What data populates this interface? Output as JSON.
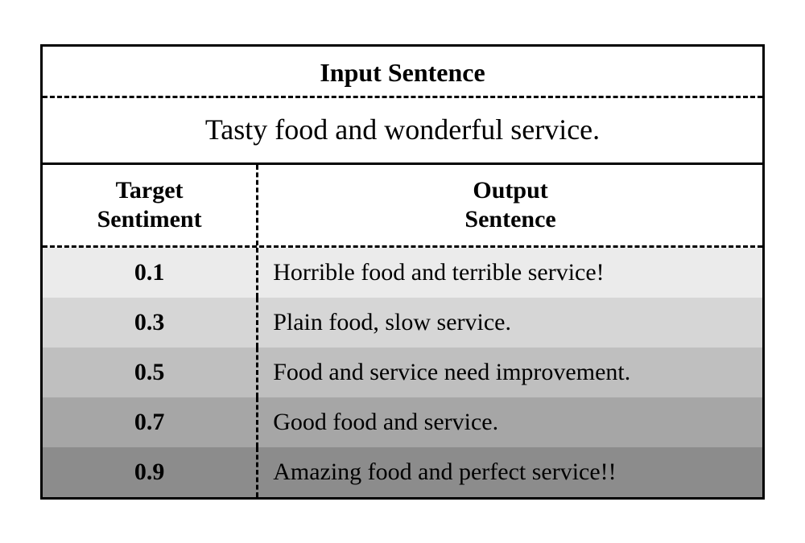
{
  "header": {
    "title": "Input Sentence",
    "input_sentence": "Tasty food and wonderful service."
  },
  "subheader": {
    "left_line1": "Target",
    "left_line2": "Sentiment",
    "right_line1": "Output",
    "right_line2": "Sentence"
  },
  "rows": [
    {
      "sentiment": "0.1",
      "output": "Horrible food and terrible service!",
      "bg": "#ebebeb"
    },
    {
      "sentiment": "0.3",
      "output": "Plain food, slow service.",
      "bg": "#d6d6d6"
    },
    {
      "sentiment": "0.5",
      "output": "Food and service need improvement.",
      "bg": "#bfbfbf"
    },
    {
      "sentiment": "0.7",
      "output": "Good food and service.",
      "bg": "#a6a6a6"
    },
    {
      "sentiment": "0.9",
      "output": "Amazing food and perfect service!!",
      "bg": "#8c8c8c"
    }
  ]
}
